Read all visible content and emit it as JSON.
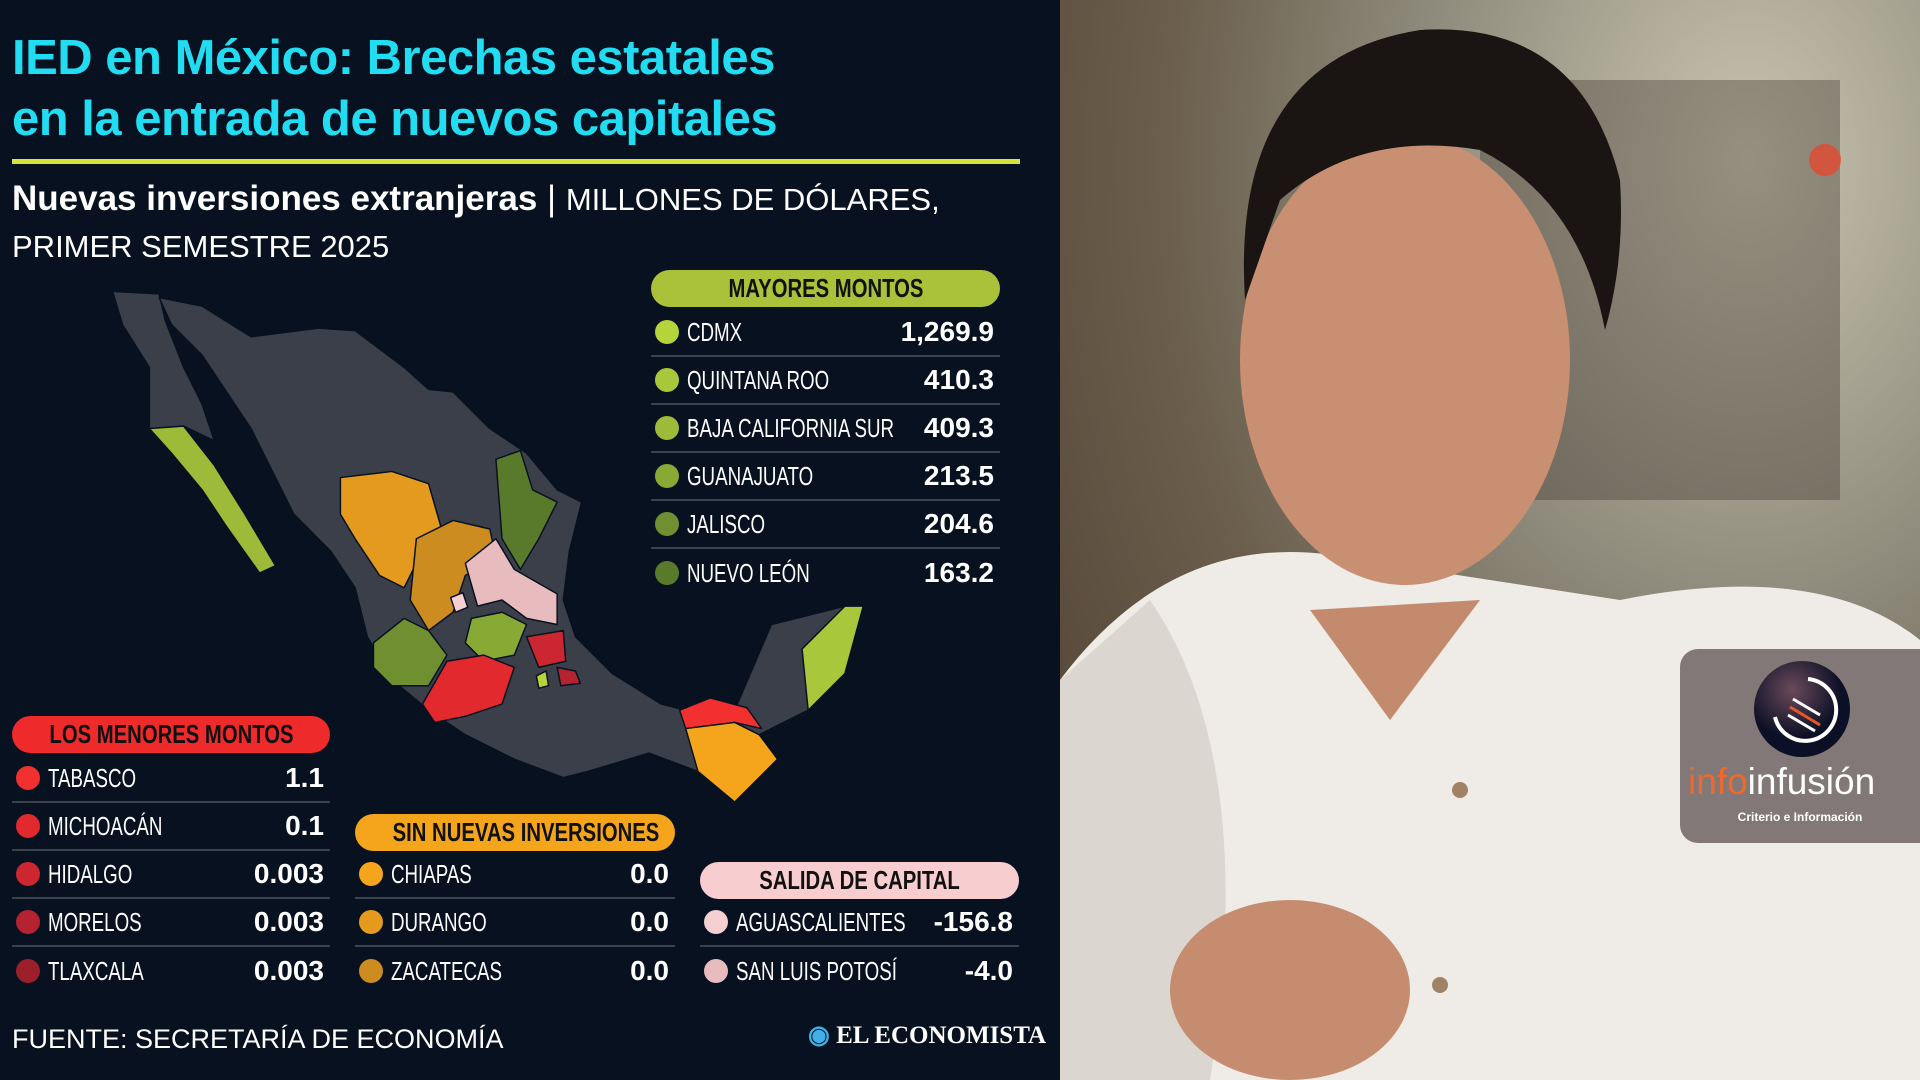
{
  "title": [
    "IED en México: Brechas estatales",
    "en la entrada de nuevos capitales"
  ],
  "subtitle": {
    "bold": "Nuevas inversiones extranjeras",
    "sep": "|",
    "light": "MILLONES DE DÓLARES, PRIMER SEMESTRE 2025"
  },
  "mayores": {
    "label": "MAYORES MONTOS",
    "color": "#a9c23a",
    "items": [
      {
        "name": "CDMX",
        "value": "1,269.9",
        "color": "#b5d33b"
      },
      {
        "name": "QUINTANA ROO",
        "value": "410.3",
        "color": "#a9c73a"
      },
      {
        "name": "BAJA CALIFORNIA SUR",
        "value": "409.3",
        "color": "#9dbb38"
      },
      {
        "name": "GUANAJUATO",
        "value": "213.5",
        "color": "#89a935"
      },
      {
        "name": "JALISCO",
        "value": "204.6",
        "color": "#6f8f30"
      },
      {
        "name": "NUEVO LEÓN",
        "value": "163.2",
        "color": "#5a7a2b"
      }
    ]
  },
  "menores": {
    "label": "LOS MENORES MONTOS",
    "color": "#ee2a2a",
    "items": [
      {
        "name": "TABASCO",
        "value": "1.1",
        "color": "#f23030"
      },
      {
        "name": "MICHOACÁN",
        "value": "0.1",
        "color": "#e22a2e"
      },
      {
        "name": "HIDALGO",
        "value": "0.003",
        "color": "#cc2630"
      },
      {
        "name": "MORELOS",
        "value": "0.003",
        "color": "#b52230"
      },
      {
        "name": "TLAXCALA",
        "value": "0.003",
        "color": "#9c1f2c"
      }
    ]
  },
  "sin": {
    "label": "SIN NUEVAS INVERSIONES",
    "color": "#f5a51c",
    "items": [
      {
        "name": "CHIAPAS",
        "value": "0.0",
        "color": "#f5a51c"
      },
      {
        "name": "DURANGO",
        "value": "0.0",
        "color": "#e39a1e"
      },
      {
        "name": "ZACATECAS",
        "value": "0.0",
        "color": "#cc8c20"
      }
    ]
  },
  "salida": {
    "label": "SALIDA DE CAPITAL",
    "color": "#f8cdd0",
    "items": [
      {
        "name": "AGUASCALIENTES",
        "value": "-156.8",
        "color": "#f5cfd2"
      },
      {
        "name": "SAN LUIS POTOSÍ",
        "value": "-4.0",
        "color": "#e8bcbf"
      }
    ]
  },
  "footer": {
    "source": "FUENTE: SECRETARÍA DE ECONOMÍA",
    "brand": "EL ECONOMISTA"
  },
  "watermark": {
    "name_a": "info",
    "name_b": "infusión",
    "tagline": "Criterio e Información"
  }
}
